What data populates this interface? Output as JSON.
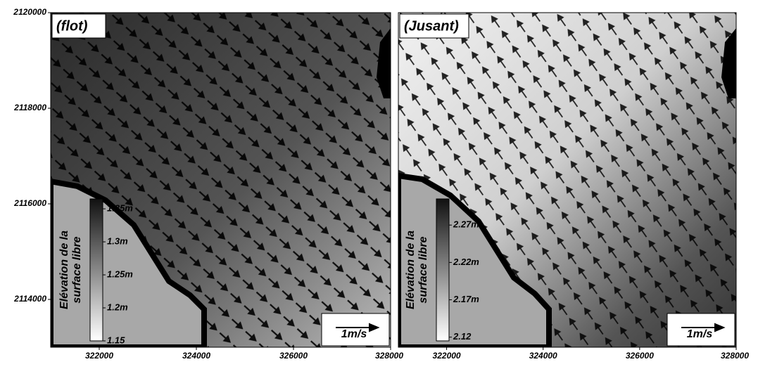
{
  "chart_data": [
    {
      "type": "vector-field",
      "panel_label": "(flot)",
      "xlim": [
        321000,
        328000
      ],
      "ylim": [
        2113000,
        2120000
      ],
      "xticks": [
        322000,
        324000,
        326000,
        328000
      ],
      "yticks": [
        2114000,
        2116000,
        2118000,
        2120000
      ],
      "colorbar": {
        "title": [
          "Elévation de la",
          "surface libre"
        ],
        "lim": [
          1.15,
          1.365
        ],
        "ticks": [
          {
            "value": 1.15,
            "label": "1.15"
          },
          {
            "value": 1.2,
            "label": "1.2m"
          },
          {
            "value": 1.25,
            "label": "1.25m"
          },
          {
            "value": 1.3,
            "label": "1.3m"
          },
          {
            "value": 1.35,
            "label": "1.35m"
          }
        ]
      },
      "scale_label": "1m/s"
    },
    {
      "type": "vector-field",
      "panel_label": "(Jusant)",
      "xlim": [
        321000,
        328000
      ],
      "ylim": [
        2113000,
        2120000
      ],
      "xticks": [
        322000,
        324000,
        326000,
        328000
      ],
      "colorbar": {
        "title": [
          "Elévation de la",
          "surface libre"
        ],
        "lim": [
          2.115,
          2.305
        ],
        "ticks": [
          {
            "value": 2.12,
            "label": "2.12"
          },
          {
            "value": 2.17,
            "label": "2.17m"
          },
          {
            "value": 2.22,
            "label": "2.22m"
          },
          {
            "value": 2.27,
            "label": "2.27m"
          }
        ]
      },
      "scale_label": "1m/s"
    }
  ]
}
